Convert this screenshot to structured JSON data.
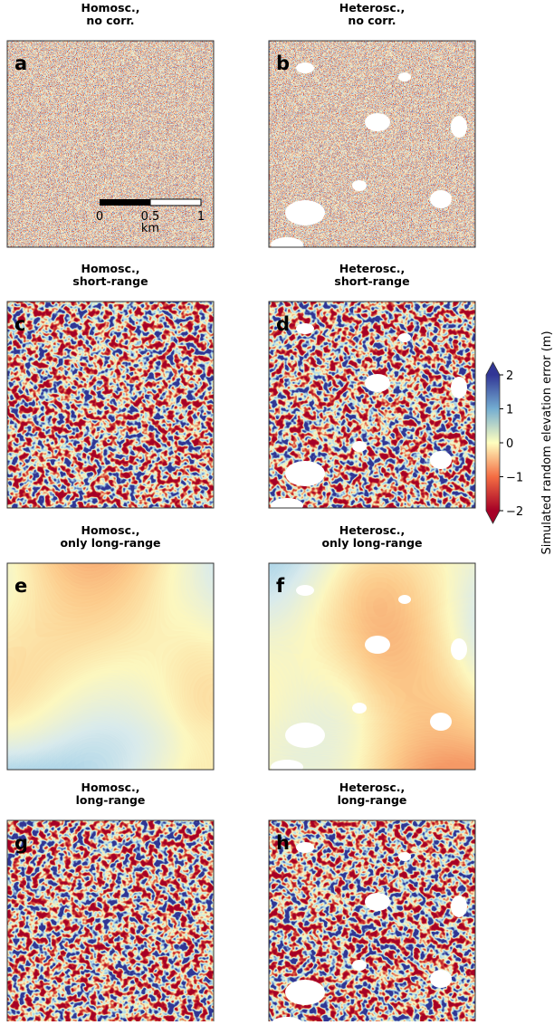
{
  "panels": [
    {
      "letter": "a",
      "title": [
        "Homosc.,",
        "no corr."
      ]
    },
    {
      "letter": "b",
      "title": [
        "Heterosc.,",
        "no corr."
      ]
    },
    {
      "letter": "c",
      "title": [
        "Homosc.,",
        "short-range"
      ]
    },
    {
      "letter": "d",
      "title": [
        "Heterosc.,",
        "short-range"
      ]
    },
    {
      "letter": "e",
      "title": [
        "Homosc.,",
        "only long-range"
      ]
    },
    {
      "letter": "f",
      "title": [
        "Heterosc.,",
        "only long-range"
      ]
    },
    {
      "letter": "g",
      "title": [
        "Homosc.,",
        "long-range"
      ]
    },
    {
      "letter": "h",
      "title": [
        "Heterosc.,",
        "long-range"
      ]
    }
  ],
  "scalebar": {
    "ticks": [
      0,
      0.5,
      1
    ],
    "unit": "km"
  },
  "colorbar": {
    "label": "Simulated random elevation error (m)",
    "lim": [
      -2,
      2
    ],
    "ticks": [
      {
        "value": -2,
        "label": "−2"
      },
      {
        "value": -1,
        "label": "−1"
      },
      0,
      1,
      2
    ]
  }
}
